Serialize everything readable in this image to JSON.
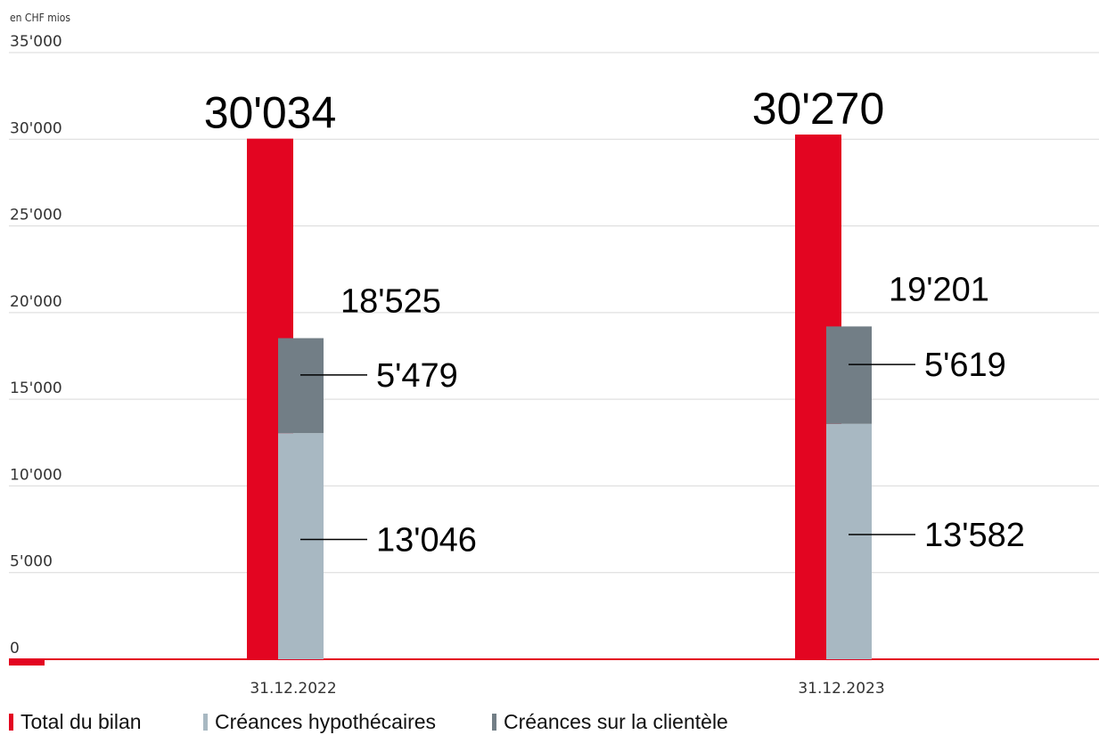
{
  "chart_data": {
    "type": "bar",
    "unit_label": "en CHF mios",
    "ylim": [
      0,
      35000
    ],
    "yticks": [
      0,
      5000,
      10000,
      15000,
      20000,
      25000,
      30000,
      35000
    ],
    "ytick_labels": [
      "0",
      "5'000",
      "10'000",
      "15'000",
      "20'000",
      "25'000",
      "30'000",
      "35'000"
    ],
    "categories": [
      "31.12.2022",
      "31.12.2023"
    ],
    "grid": true,
    "legend_position": "bottom-left",
    "series": [
      {
        "name": "Total du bilan",
        "color": "#e30521",
        "values": [
          30034,
          30270
        ],
        "labels": [
          "30'034",
          "30'270"
        ]
      },
      {
        "name": "Créances hypothécaires",
        "color": "#a8b8c2",
        "values": [
          13046,
          13582
        ],
        "labels": [
          "13'046",
          "13'582"
        ]
      },
      {
        "name": "Créances sur la clientèle",
        "color": "#727e86",
        "values": [
          5479,
          5619
        ],
        "labels": [
          "5'479",
          "5'619"
        ]
      }
    ],
    "stack_totals": [
      "18'525",
      "19'201"
    ]
  }
}
